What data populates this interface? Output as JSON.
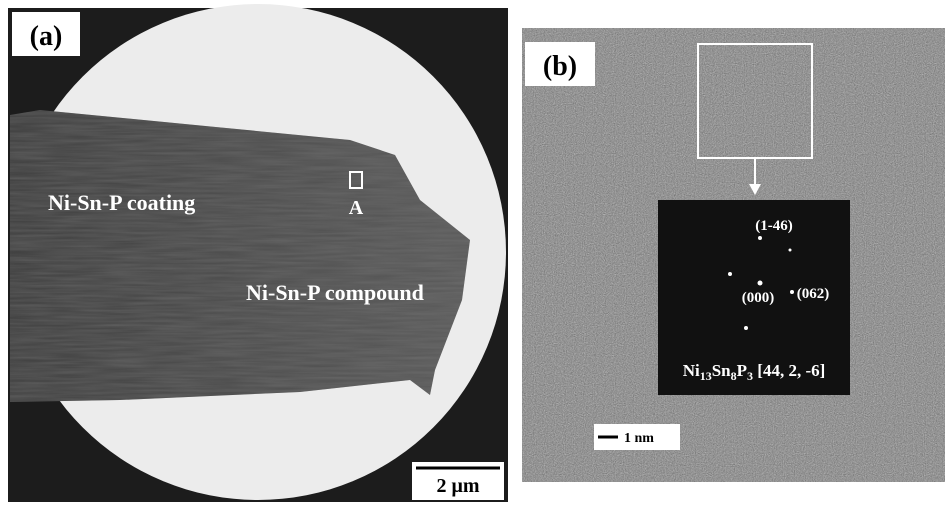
{
  "panel_a": {
    "label": "(a)",
    "coating_label": "Ni-Sn-P coating",
    "region_label": "A",
    "compound_label": "Ni-Sn-P compound",
    "scale_bar": "2 μm"
  },
  "panel_b": {
    "label": "(b)",
    "spots": [
      "(1-46)",
      "(000)",
      "(062)"
    ],
    "phase": {
      "parts": [
        "Ni",
        "13",
        "Sn",
        "8",
        "P",
        "3"
      ],
      "zone_axis": " [44, 2, -6]"
    },
    "scale_bar": "1 nm"
  }
}
